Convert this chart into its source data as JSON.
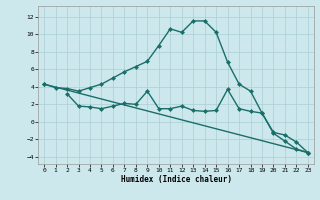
{
  "bg_color": "#cde8ec",
  "grid_color": "#aacdd4",
  "line_color": "#1a6e6a",
  "line1_x": [
    0,
    1,
    2,
    3,
    4,
    5,
    6,
    7,
    8,
    9,
    10,
    11,
    12,
    13,
    14,
    15,
    16,
    17,
    18,
    19,
    20,
    21,
    22,
    23
  ],
  "line1_y": [
    4.3,
    3.9,
    3.8,
    3.5,
    3.9,
    4.3,
    5.0,
    5.7,
    6.3,
    6.9,
    8.7,
    10.6,
    10.2,
    11.5,
    11.5,
    10.2,
    6.8,
    4.3,
    3.5,
    1.0,
    -1.3,
    -2.2,
    -3.1,
    -3.5
  ],
  "line2_x": [
    2,
    3,
    4,
    5,
    6,
    7,
    8,
    9,
    10,
    11,
    12,
    13,
    14,
    15,
    16,
    17,
    18,
    19,
    20,
    21,
    22,
    23
  ],
  "line2_y": [
    3.2,
    1.8,
    1.7,
    1.5,
    1.8,
    2.1,
    2.0,
    3.5,
    1.5,
    1.5,
    1.8,
    1.3,
    1.2,
    1.3,
    3.7,
    1.5,
    1.2,
    1.0,
    -1.2,
    -1.5,
    -2.3,
    -3.5
  ],
  "line3_x": [
    0,
    23
  ],
  "line3_y": [
    4.3,
    -3.5
  ],
  "xlim": [
    -0.5,
    23.5
  ],
  "ylim": [
    -4.8,
    13.2
  ],
  "yticks": [
    -4,
    -2,
    0,
    2,
    4,
    6,
    8,
    10,
    12
  ],
  "xticks": [
    0,
    1,
    2,
    3,
    4,
    5,
    6,
    7,
    8,
    9,
    10,
    11,
    12,
    13,
    14,
    15,
    16,
    17,
    18,
    19,
    20,
    21,
    22,
    23
  ],
  "xlabel": "Humidex (Indice chaleur)",
  "markersize": 2.5,
  "linewidth": 1.0
}
